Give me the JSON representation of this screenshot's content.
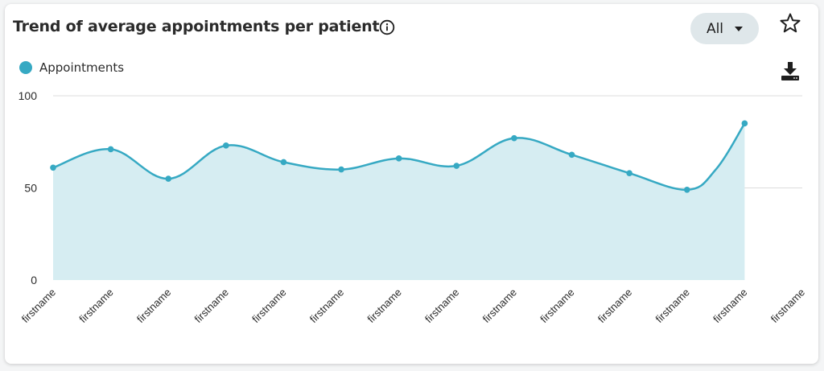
{
  "header": {
    "title": "Trend of average appointments per patient",
    "filter_value": "All"
  },
  "icons": {
    "info": "info-icon",
    "star": "star-outline-icon",
    "download": "download-icon",
    "caret": "caret-down-icon"
  },
  "colors": {
    "series_line": "#36a9c3",
    "series_fill": "#d6edf2",
    "dropdown_bg": "#dfe7ea"
  },
  "chart_data": {
    "type": "area",
    "title": "",
    "xlabel": "",
    "ylabel": "",
    "ylim": [
      0,
      100
    ],
    "yticks": [
      0,
      50,
      100
    ],
    "grid": true,
    "legend_position": "top-left",
    "categories": [
      "firstname",
      "firstname",
      "firstname",
      "firstname",
      "firstname",
      "firstname",
      "firstname",
      "firstname",
      "firstname",
      "firstname",
      "firstname",
      "firstname",
      "firstname",
      "firstname"
    ],
    "series": [
      {
        "name": "Appointments",
        "points": [
          {
            "x": 0,
            "y": 61
          },
          {
            "x": 1,
            "y": 71
          },
          {
            "x": 2,
            "y": 55
          },
          {
            "x": 3,
            "y": 73
          },
          {
            "x": 4,
            "y": 64
          },
          {
            "x": 5,
            "y": 60
          },
          {
            "x": 6,
            "y": 66
          },
          {
            "x": 7,
            "y": 62
          },
          {
            "x": 8,
            "y": 77
          },
          {
            "x": 9,
            "y": 68
          },
          {
            "x": 10,
            "y": 58
          },
          {
            "x": 11,
            "y": 49
          },
          {
            "x": 11.5,
            "y": 60
          },
          {
            "x": 12,
            "y": 85
          }
        ],
        "marker_x": [
          0,
          1,
          2,
          3,
          4,
          5,
          6,
          7,
          8,
          9,
          10,
          11,
          12
        ]
      }
    ]
  }
}
